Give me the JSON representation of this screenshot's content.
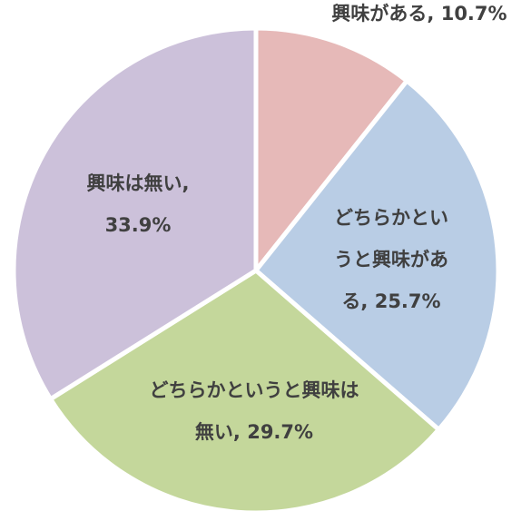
{
  "chart_data": {
    "type": "pie",
    "title": "",
    "series": [
      {
        "values": [
          10.7,
          25.7,
          29.7,
          33.9
        ],
        "colors": [
          "#e6b9b8",
          "#b9cde5",
          "#c4d79b",
          "#ccc1da"
        ]
      }
    ],
    "categories": [
      "興味がある",
      "どちらかというと興味がある",
      "どちらかというと興味は無い",
      "興味は無い"
    ],
    "data_labels": [
      [
        "興味がある, 10.7%"
      ],
      [
        "どちらかとい",
        "うと興味があ",
        "る, 25.7%"
      ],
      [
        "どちらかというと興味は",
        "無い, 29.7%"
      ],
      [
        "興味は無い,",
        "33.9%"
      ]
    ],
    "start": "12 o'clock",
    "direction": "clockwise",
    "legend": "none"
  }
}
